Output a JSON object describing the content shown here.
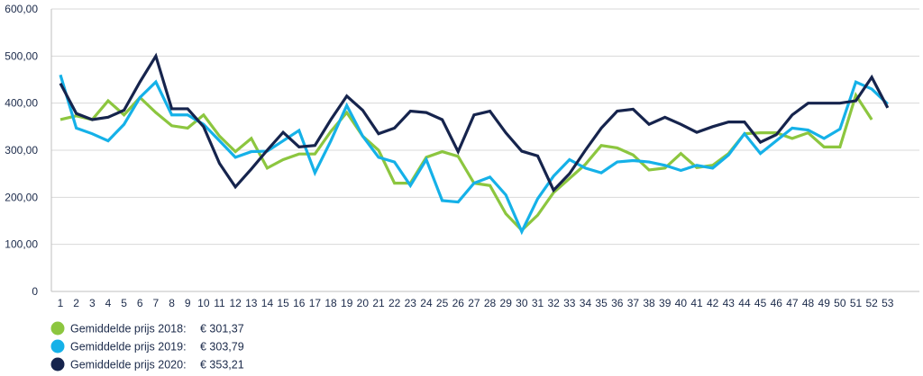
{
  "chart_data": {
    "type": "line",
    "title": "",
    "xlabel": "",
    "ylabel": "",
    "ylim": [
      0,
      600
    ],
    "y_ticks": [
      {
        "value": 0,
        "label": "0"
      },
      {
        "value": 100,
        "label": "100,00"
      },
      {
        "value": 200,
        "label": "200,00"
      },
      {
        "value": 300,
        "label": "300,00"
      },
      {
        "value": 400,
        "label": "400,00"
      },
      {
        "value": 500,
        "label": "500,00"
      },
      {
        "value": 600,
        "label": "600,00"
      }
    ],
    "grid": "horizontal",
    "legend_position": "bottom-left",
    "x": [
      1,
      2,
      3,
      4,
      5,
      6,
      7,
      8,
      9,
      10,
      11,
      12,
      13,
      14,
      15,
      16,
      17,
      18,
      19,
      20,
      21,
      22,
      23,
      24,
      25,
      26,
      27,
      28,
      29,
      30,
      31,
      32,
      33,
      34,
      35,
      36,
      37,
      38,
      39,
      40,
      41,
      42,
      43,
      44,
      45,
      46,
      47,
      48,
      49,
      50,
      51,
      52,
      53
    ],
    "series": [
      {
        "name": "Gemiddelde prijs 2018:",
        "average": "€ 301,37",
        "color": "#8cc63f",
        "values": [
          365,
          373,
          365,
          405,
          375,
          412,
          380,
          352,
          347,
          375,
          330,
          297,
          325,
          262,
          280,
          292,
          292,
          340,
          380,
          330,
          300,
          230,
          230,
          285,
          297,
          287,
          230,
          225,
          165,
          130,
          162,
          210,
          240,
          270,
          310,
          305,
          290,
          258,
          262,
          293,
          263,
          268,
          293,
          335,
          337,
          337,
          325,
          337,
          307,
          307,
          417,
          365,
          null
        ]
      },
      {
        "name": "Gemiddelde prijs 2019:",
        "average": "€ 303,79",
        "color": "#15b1e8",
        "values": [
          460,
          347,
          335,
          320,
          355,
          412,
          445,
          375,
          375,
          355,
          320,
          285,
          297,
          298,
          320,
          342,
          252,
          320,
          395,
          330,
          285,
          275,
          225,
          280,
          193,
          190,
          230,
          243,
          205,
          127,
          197,
          245,
          280,
          262,
          252,
          275,
          278,
          275,
          268,
          257,
          268,
          262,
          290,
          335,
          293,
          320,
          347,
          343,
          325,
          345,
          445,
          430,
          398
        ]
      },
      {
        "name": "Gemiddelde prijs 2020:",
        "average": "€ 353,21",
        "color": "#16244d",
        "values": [
          442,
          378,
          365,
          370,
          385,
          445,
          500,
          388,
          388,
          350,
          272,
          222,
          260,
          300,
          338,
          307,
          310,
          365,
          415,
          385,
          335,
          347,
          383,
          380,
          365,
          297,
          375,
          383,
          337,
          298,
          288,
          215,
          250,
          300,
          347,
          383,
          387,
          355,
          370,
          355,
          338,
          350,
          360,
          360,
          317,
          333,
          375,
          400,
          400,
          400,
          405,
          455,
          390
        ]
      }
    ]
  }
}
